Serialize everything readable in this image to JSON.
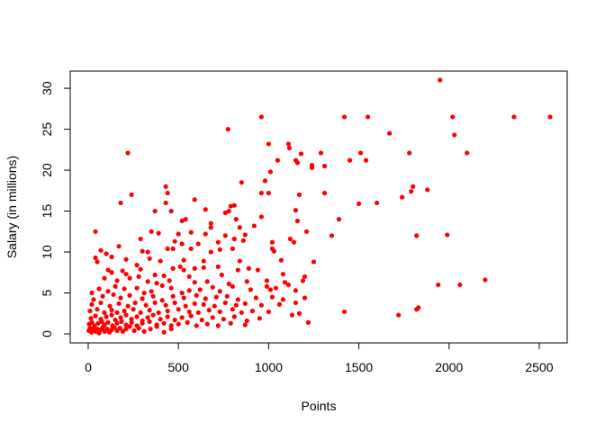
{
  "chart_data": {
    "type": "scatter",
    "title": "",
    "xlabel": "Points",
    "ylabel": "Salary (in millions)",
    "xlim": [
      0,
      2560
    ],
    "ylim": [
      0,
      31
    ],
    "x_ticks": [
      0,
      500,
      1000,
      1500,
      2000,
      2500
    ],
    "x_tick_labels": [
      "0",
      "500",
      "1000",
      "1500",
      "2000",
      "2500"
    ],
    "y_ticks": [
      0,
      5,
      10,
      15,
      20,
      25,
      30
    ],
    "y_tick_labels": [
      "0",
      "5",
      "10",
      "15",
      "20",
      "25",
      "30"
    ],
    "grid": false,
    "legend": "none",
    "point_color": "#ff0000",
    "points": [
      [
        1950,
        31.0
      ],
      [
        960,
        26.5
      ],
      [
        1420,
        26.5
      ],
      [
        1550,
        26.5
      ],
      [
        2020,
        26.5
      ],
      [
        2360,
        26.5
      ],
      [
        2560,
        26.5
      ],
      [
        775,
        25.0
      ],
      [
        1670,
        24.5
      ],
      [
        2030,
        24.3
      ],
      [
        1000,
        23.2
      ],
      [
        1110,
        23.2
      ],
      [
        1115,
        22.7
      ],
      [
        1180,
        22.0
      ],
      [
        220,
        22.1
      ],
      [
        1290,
        22.1
      ],
      [
        1510,
        22.1
      ],
      [
        1780,
        22.1
      ],
      [
        2100,
        22.1
      ],
      [
        1050,
        21.2
      ],
      [
        1150,
        21.2
      ],
      [
        1160,
        20.9
      ],
      [
        1450,
        21.2
      ],
      [
        1540,
        21.2
      ],
      [
        1240,
        20.6
      ],
      [
        1240,
        20.3
      ],
      [
        1310,
        20.5
      ],
      [
        1010,
        19.8
      ],
      [
        1800,
        18.0
      ],
      [
        1790,
        17.4
      ],
      [
        1880,
        17.6
      ],
      [
        1740,
        16.7
      ],
      [
        980,
        18.7
      ],
      [
        850,
        18.5
      ],
      [
        1000,
        17.2
      ],
      [
        960,
        17.2
      ],
      [
        1170,
        17.0
      ],
      [
        1310,
        17.2
      ],
      [
        430,
        18.0
      ],
      [
        440,
        17.2
      ],
      [
        240,
        17.0
      ],
      [
        590,
        16.4
      ],
      [
        180,
        16.0
      ],
      [
        1500,
        15.9
      ],
      [
        1600,
        16.0
      ],
      [
        430,
        16.0
      ],
      [
        460,
        15.0
      ],
      [
        370,
        15.0
      ],
      [
        650,
        15.2
      ],
      [
        790,
        15.6
      ],
      [
        810,
        15.7
      ],
      [
        780,
        15.0
      ],
      [
        760,
        14.8
      ],
      [
        1150,
        15.1
      ],
      [
        1160,
        13.8
      ],
      [
        1390,
        14.0
      ],
      [
        960,
        14.3
      ],
      [
        540,
        14.0
      ],
      [
        520,
        13.8
      ],
      [
        680,
        13.5
      ],
      [
        680,
        13.0
      ],
      [
        820,
        14.0
      ],
      [
        840,
        13.0
      ],
      [
        920,
        13.2
      ],
      [
        40,
        12.5
      ],
      [
        350,
        12.5
      ],
      [
        390,
        12.3
      ],
      [
        500,
        12.2
      ],
      [
        570,
        12.4
      ],
      [
        650,
        12.2
      ],
      [
        760,
        12.0
      ],
      [
        870,
        12.1
      ],
      [
        1210,
        12.5
      ],
      [
        1350,
        12.0
      ],
      [
        1820,
        12.0
      ],
      [
        1990,
        12.1
      ],
      [
        290,
        11.6
      ],
      [
        480,
        11.3
      ],
      [
        520,
        11.0
      ],
      [
        610,
        11.0
      ],
      [
        720,
        11.2
      ],
      [
        810,
        11.6
      ],
      [
        860,
        11.4
      ],
      [
        1020,
        11.2
      ],
      [
        1120,
        11.6
      ],
      [
        1140,
        11.2
      ],
      [
        170,
        10.7
      ],
      [
        300,
        10.1
      ],
      [
        330,
        10.0
      ],
      [
        440,
        10.4
      ],
      [
        470,
        10.4
      ],
      [
        570,
        10.4
      ],
      [
        680,
        10.0
      ],
      [
        730,
        10.3
      ],
      [
        800,
        10.4
      ],
      [
        1020,
        10.4
      ],
      [
        1030,
        10.1
      ],
      [
        70,
        10.2
      ],
      [
        100,
        9.8
      ],
      [
        40,
        9.3
      ],
      [
        50,
        8.8
      ],
      [
        130,
        9.4
      ],
      [
        210,
        9.1
      ],
      [
        340,
        9.2
      ],
      [
        400,
        8.9
      ],
      [
        530,
        9.0
      ],
      [
        640,
        8.9
      ],
      [
        840,
        8.9
      ],
      [
        1070,
        9.0
      ],
      [
        1250,
        8.8
      ],
      [
        270,
        8.4
      ],
      [
        290,
        7.9
      ],
      [
        470,
        8.0
      ],
      [
        510,
        8.2
      ],
      [
        530,
        7.8
      ],
      [
        590,
        8.0
      ],
      [
        640,
        8.1
      ],
      [
        720,
        8.2
      ],
      [
        830,
        7.8
      ],
      [
        890,
        8.0
      ],
      [
        940,
        7.8
      ],
      [
        110,
        7.8
      ],
      [
        130,
        7.5
      ],
      [
        190,
        7.7
      ],
      [
        210,
        7.3
      ],
      [
        280,
        7.0
      ],
      [
        370,
        7.2
      ],
      [
        420,
        7.1
      ],
      [
        560,
        7.0
      ],
      [
        740,
        7.2
      ],
      [
        1080,
        7.3
      ],
      [
        1200,
        7.0
      ],
      [
        90,
        6.8
      ],
      [
        160,
        6.5
      ],
      [
        230,
        6.8
      ],
      [
        330,
        6.4
      ],
      [
        380,
        6.2
      ],
      [
        450,
        6.5
      ],
      [
        590,
        6.3
      ],
      [
        660,
        6.4
      ],
      [
        780,
        6.1
      ],
      [
        880,
        6.4
      ],
      [
        990,
        6.5
      ],
      [
        1090,
        6.3
      ],
      [
        1110,
        6.0
      ],
      [
        1190,
        6.5
      ],
      [
        1940,
        6.0
      ],
      [
        2060,
        6.0
      ],
      [
        2200,
        6.6
      ],
      [
        20,
        5.0
      ],
      [
        60,
        5.5
      ],
      [
        110,
        5.2
      ],
      [
        150,
        5.8
      ],
      [
        200,
        5.5
      ],
      [
        270,
        5.6
      ],
      [
        310,
        5.0
      ],
      [
        350,
        5.2
      ],
      [
        410,
        5.9
      ],
      [
        460,
        5.6
      ],
      [
        520,
        5.0
      ],
      [
        560,
        5.3
      ],
      [
        620,
        5.4
      ],
      [
        690,
        5.7
      ],
      [
        730,
        5.2
      ],
      [
        800,
        5.8
      ],
      [
        900,
        5.4
      ],
      [
        990,
        5.8
      ],
      [
        1010,
        5.4
      ],
      [
        1040,
        5.6
      ],
      [
        1150,
        5.3
      ],
      [
        30,
        4.2
      ],
      [
        80,
        4.6
      ],
      [
        140,
        4.8
      ],
      [
        180,
        4.4
      ],
      [
        230,
        4.7
      ],
      [
        300,
        4.3
      ],
      [
        360,
        4.6
      ],
      [
        410,
        4.1
      ],
      [
        470,
        4.6
      ],
      [
        530,
        4.4
      ],
      [
        600,
        4.7
      ],
      [
        650,
        4.3
      ],
      [
        710,
        4.5
      ],
      [
        770,
        4.6
      ],
      [
        830,
        4.2
      ],
      [
        930,
        4.4
      ],
      [
        1020,
        4.5
      ],
      [
        1080,
        4.2
      ],
      [
        1200,
        4.4
      ],
      [
        20,
        3.6
      ],
      [
        70,
        3.8
      ],
      [
        120,
        3.4
      ],
      [
        170,
        3.7
      ],
      [
        220,
        3.4
      ],
      [
        260,
        3.8
      ],
      [
        320,
        3.5
      ],
      [
        370,
        3.8
      ],
      [
        430,
        3.5
      ],
      [
        480,
        3.8
      ],
      [
        540,
        3.4
      ],
      [
        590,
        3.7
      ],
      [
        640,
        3.6
      ],
      [
        700,
        3.4
      ],
      [
        760,
        3.8
      ],
      [
        820,
        3.5
      ],
      [
        870,
        3.7
      ],
      [
        960,
        3.5
      ],
      [
        1060,
        3.6
      ],
      [
        1150,
        3.8
      ],
      [
        1830,
        3.2
      ],
      [
        1820,
        3.0
      ],
      [
        1420,
        2.7
      ],
      [
        10,
        2.8
      ],
      [
        50,
        3.0
      ],
      [
        90,
        2.6
      ],
      [
        130,
        2.9
      ],
      [
        160,
        2.6
      ],
      [
        200,
        2.8
      ],
      [
        250,
        3.0
      ],
      [
        290,
        2.6
      ],
      [
        340,
        2.9
      ],
      [
        390,
        2.6
      ],
      [
        440,
        2.8
      ],
      [
        500,
        3.0
      ],
      [
        560,
        2.7
      ],
      [
        610,
        2.6
      ],
      [
        670,
        2.9
      ],
      [
        730,
        2.7
      ],
      [
        800,
        3.0
      ],
      [
        850,
        2.6
      ],
      [
        910,
        2.8
      ],
      [
        1000,
        2.7
      ],
      [
        1130,
        2.3
      ],
      [
        1170,
        2.5
      ],
      [
        1720,
        2.3
      ],
      [
        15,
        1.9
      ],
      [
        40,
        2.2
      ],
      [
        70,
        1.8
      ],
      [
        100,
        2.1
      ],
      [
        130,
        2.3
      ],
      [
        150,
        1.7
      ],
      [
        180,
        2.0
      ],
      [
        210,
        2.3
      ],
      [
        240,
        1.8
      ],
      [
        270,
        2.1
      ],
      [
        300,
        1.6
      ],
      [
        330,
        2.0
      ],
      [
        360,
        2.3
      ],
      [
        400,
        1.8
      ],
      [
        440,
        2.1
      ],
      [
        480,
        1.7
      ],
      [
        520,
        2.0
      ],
      [
        570,
        2.2
      ],
      [
        630,
        1.7
      ],
      [
        690,
        2.0
      ],
      [
        750,
        1.8
      ],
      [
        810,
        2.1
      ],
      [
        880,
        1.6
      ],
      [
        950,
        1.9
      ],
      [
        5,
        1.2
      ],
      [
        20,
        1.4
      ],
      [
        35,
        1.0
      ],
      [
        55,
        1.3
      ],
      [
        75,
        1.5
      ],
      [
        90,
        1.1
      ],
      [
        110,
        1.4
      ],
      [
        135,
        1.0
      ],
      [
        160,
        1.3
      ],
      [
        185,
        1.5
      ],
      [
        210,
        1.1
      ],
      [
        240,
        1.4
      ],
      [
        270,
        1.0
      ],
      [
        300,
        1.3
      ],
      [
        340,
        1.5
      ],
      [
        380,
        1.1
      ],
      [
        420,
        1.3
      ],
      [
        460,
        1.0
      ],
      [
        500,
        1.2
      ],
      [
        550,
        1.4
      ],
      [
        600,
        1.0
      ],
      [
        660,
        1.2
      ],
      [
        720,
        1.0
      ],
      [
        790,
        1.3
      ],
      [
        870,
        1.1
      ],
      [
        1220,
        1.4
      ],
      [
        3,
        0.4
      ],
      [
        10,
        0.7
      ],
      [
        18,
        0.2
      ],
      [
        25,
        0.5
      ],
      [
        33,
        0.8
      ],
      [
        42,
        0.3
      ],
      [
        50,
        0.6
      ],
      [
        60,
        0.1
      ],
      [
        70,
        0.5
      ],
      [
        80,
        0.8
      ],
      [
        92,
        0.3
      ],
      [
        105,
        0.6
      ],
      [
        118,
        0.2
      ],
      [
        130,
        0.5
      ],
      [
        145,
        0.8
      ],
      [
        160,
        0.4
      ],
      [
        175,
        0.7
      ],
      [
        192,
        0.3
      ],
      [
        210,
        0.6
      ],
      [
        230,
        0.9
      ],
      [
        255,
        0.4
      ],
      [
        280,
        0.7
      ],
      [
        310,
        0.3
      ],
      [
        345,
        0.6
      ],
      [
        380,
        0.9
      ],
      [
        420,
        0.2
      ],
      [
        460,
        0.6
      ]
    ]
  }
}
